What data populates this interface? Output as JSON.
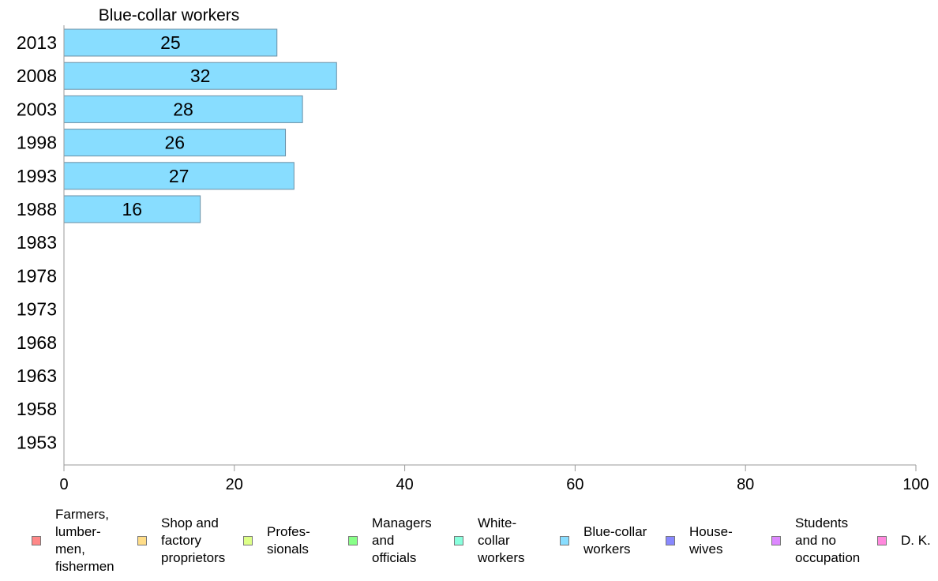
{
  "chart_data": {
    "type": "bar",
    "orientation": "horizontal",
    "title": "Blue-collar workers",
    "categories": [
      "2013",
      "2008",
      "2003",
      "1998",
      "1993",
      "1988",
      "1983",
      "1978",
      "1973",
      "1968",
      "1963",
      "1958",
      "1953"
    ],
    "series": [
      {
        "name": "Blue-collar workers",
        "color": "#88ddff",
        "values": [
          25,
          32,
          28,
          26,
          27,
          16,
          null,
          null,
          null,
          null,
          null,
          null,
          null
        ]
      }
    ],
    "xlim": [
      0,
      100
    ],
    "xticks": [
      "0",
      "20",
      "40",
      "60",
      "80",
      "100"
    ],
    "grid": false,
    "legend_position": "bottom",
    "legend": [
      {
        "label": "Farmers,\nlumber-\nmen,\nfishermen",
        "color": "#ff8888"
      },
      {
        "label": "Shop and\nfactory\nproprietors",
        "color": "#ffdd88"
      },
      {
        "label": "Profes-\nsionals",
        "color": "#ddff88"
      },
      {
        "label": "Managers\nand\nofficials",
        "color": "#88ff88"
      },
      {
        "label": "White-\ncollar\nworkers",
        "color": "#88ffdd"
      },
      {
        "label": "Blue-collar\nworkers",
        "color": "#88ddff"
      },
      {
        "label": "House-\nwives",
        "color": "#8888ff"
      },
      {
        "label": "Students\nand no\noccupation",
        "color": "#dd88ff"
      },
      {
        "label": "D. K.",
        "color": "#ff88dd"
      }
    ]
  }
}
